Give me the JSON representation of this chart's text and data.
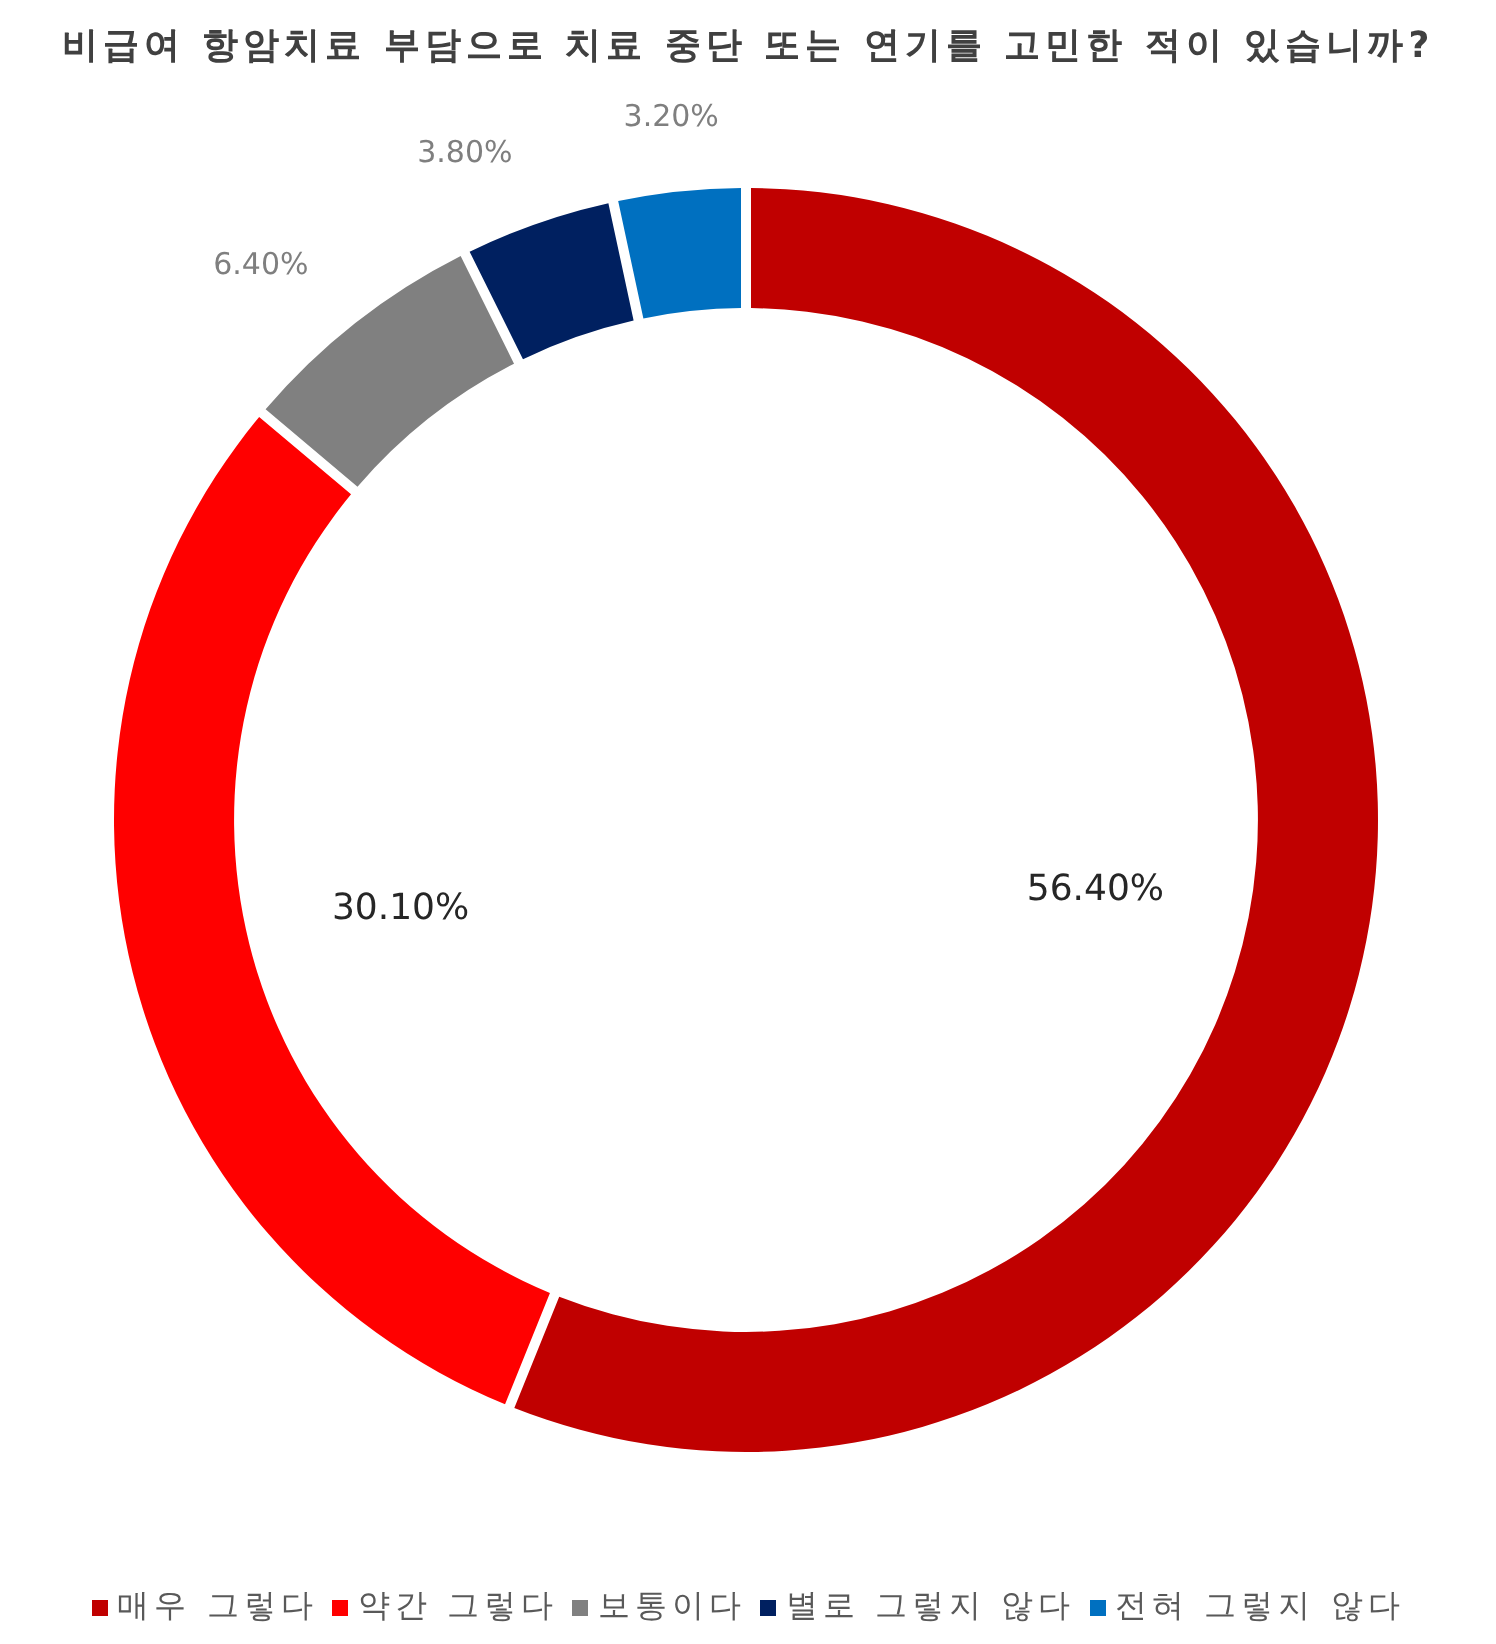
{
  "chart_data": {
    "type": "donut",
    "title": "비급여 항암치료 부담으로 치료 중단 또는 연기를 고민한 적이 있습니까?",
    "categories": [
      "매우 그렇다",
      "약간 그렇다",
      "보통이다",
      "별로 그렇지 않다",
      "전혀 그렇지 않다"
    ],
    "values": [
      56.4,
      30.1,
      6.4,
      3.8,
      3.2
    ],
    "colors": [
      "#c00000",
      "#ff0000",
      "#808080",
      "#002060",
      "#0070c0"
    ],
    "value_labels": [
      "56.40%",
      "30.10%",
      "6.40%",
      "3.80%",
      "3.20%"
    ],
    "legend": "bottom"
  }
}
